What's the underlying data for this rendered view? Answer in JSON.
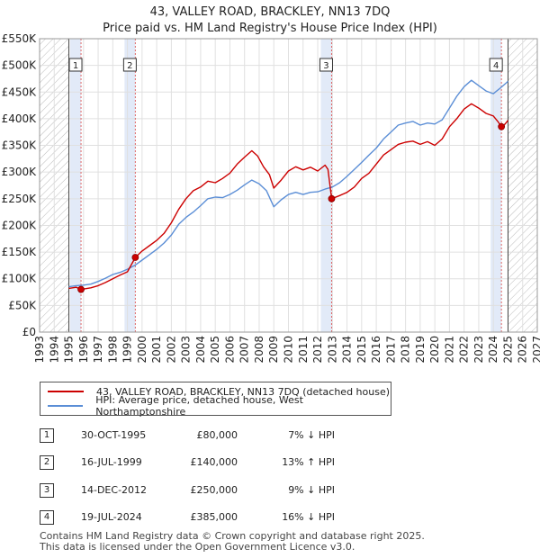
{
  "title": "43, VALLEY ROAD, BRACKLEY, NN13 7DQ",
  "subtitle": "Price paid vs. HM Land Registry's House Price Index (HPI)",
  "colors": {
    "property": "#cc0000",
    "hpi": "#5b8ed6",
    "band": "#dde6f7",
    "hatch": "#bbbbbb",
    "marker_line": "#dd6666"
  },
  "chart_data": {
    "type": "line",
    "x_range": [
      1993,
      2027
    ],
    "y_range": [
      0,
      550000
    ],
    "x_ticks": [
      "1993",
      "1994",
      "1995",
      "1996",
      "1997",
      "1998",
      "1999",
      "2000",
      "2001",
      "2002",
      "2003",
      "2004",
      "2005",
      "2006",
      "2007",
      "2008",
      "2009",
      "2010",
      "2011",
      "2012",
      "2013",
      "2014",
      "2015",
      "2016",
      "2017",
      "2018",
      "2019",
      "2020",
      "2021",
      "2022",
      "2023",
      "2024",
      "2025",
      "2026",
      "2027"
    ],
    "y_ticks": [
      {
        "value": 0,
        "label": "£0"
      },
      {
        "value": 50000,
        "label": "£50K"
      },
      {
        "value": 100000,
        "label": "£100K"
      },
      {
        "value": 150000,
        "label": "£150K"
      },
      {
        "value": 200000,
        "label": "£200K"
      },
      {
        "value": 250000,
        "label": "£250K"
      },
      {
        "value": 300000,
        "label": "£300K"
      },
      {
        "value": 350000,
        "label": "£350K"
      },
      {
        "value": 400000,
        "label": "£400K"
      },
      {
        "value": 450000,
        "label": "£450K"
      },
      {
        "value": 500000,
        "label": "£500K"
      },
      {
        "value": 550000,
        "label": "£550K"
      }
    ],
    "hatched_before": 1995.0,
    "hatched_after": 2025.0,
    "series": [
      {
        "name": "43, VALLEY ROAD, BRACKLEY, NN13 7DQ (detached house)",
        "color": "#cc0000",
        "points": [
          [
            1995.0,
            82000
          ],
          [
            1995.5,
            84000
          ],
          [
            1995.83,
            80000
          ],
          [
            1996.5,
            83000
          ],
          [
            1997.0,
            87000
          ],
          [
            1997.5,
            93000
          ],
          [
            1998.0,
            100000
          ],
          [
            1998.5,
            107000
          ],
          [
            1999.0,
            113000
          ],
          [
            1999.54,
            140000
          ],
          [
            2000.0,
            152000
          ],
          [
            2000.5,
            162000
          ],
          [
            2001.0,
            172000
          ],
          [
            2001.5,
            185000
          ],
          [
            2002.0,
            205000
          ],
          [
            2002.5,
            230000
          ],
          [
            2003.0,
            250000
          ],
          [
            2003.5,
            265000
          ],
          [
            2004.0,
            272000
          ],
          [
            2004.5,
            283000
          ],
          [
            2005.0,
            280000
          ],
          [
            2005.5,
            288000
          ],
          [
            2006.0,
            298000
          ],
          [
            2006.5,
            315000
          ],
          [
            2007.0,
            328000
          ],
          [
            2007.5,
            340000
          ],
          [
            2007.9,
            330000
          ],
          [
            2008.3,
            310000
          ],
          [
            2008.7,
            295000
          ],
          [
            2009.0,
            270000
          ],
          [
            2009.5,
            285000
          ],
          [
            2010.0,
            302000
          ],
          [
            2010.5,
            310000
          ],
          [
            2011.0,
            304000
          ],
          [
            2011.5,
            309000
          ],
          [
            2012.0,
            302000
          ],
          [
            2012.5,
            313000
          ],
          [
            2012.7,
            305000
          ],
          [
            2012.95,
            250000
          ],
          [
            2013.5,
            256000
          ],
          [
            2014.0,
            262000
          ],
          [
            2014.5,
            272000
          ],
          [
            2015.0,
            288000
          ],
          [
            2015.5,
            298000
          ],
          [
            2016.0,
            315000
          ],
          [
            2016.5,
            332000
          ],
          [
            2017.0,
            342000
          ],
          [
            2017.5,
            352000
          ],
          [
            2018.0,
            356000
          ],
          [
            2018.5,
            358000
          ],
          [
            2019.0,
            352000
          ],
          [
            2019.5,
            357000
          ],
          [
            2020.0,
            350000
          ],
          [
            2020.5,
            362000
          ],
          [
            2021.0,
            385000
          ],
          [
            2021.5,
            400000
          ],
          [
            2022.0,
            418000
          ],
          [
            2022.5,
            428000
          ],
          [
            2023.0,
            420000
          ],
          [
            2023.5,
            410000
          ],
          [
            2024.0,
            405000
          ],
          [
            2024.3,
            395000
          ],
          [
            2024.55,
            385000
          ],
          [
            2024.8,
            390000
          ],
          [
            2025.0,
            397000
          ]
        ]
      },
      {
        "name": "HPI: Average price, detached house, West Northamptonshire",
        "color": "#5b8ed6",
        "points": [
          [
            1995.0,
            85000
          ],
          [
            1995.5,
            87000
          ],
          [
            1996.0,
            88000
          ],
          [
            1996.5,
            90000
          ],
          [
            1997.0,
            95000
          ],
          [
            1997.5,
            101000
          ],
          [
            1998.0,
            108000
          ],
          [
            1998.5,
            112000
          ],
          [
            1999.0,
            118000
          ],
          [
            1999.5,
            125000
          ],
          [
            2000.0,
            135000
          ],
          [
            2000.5,
            145000
          ],
          [
            2001.0,
            155000
          ],
          [
            2001.5,
            167000
          ],
          [
            2002.0,
            182000
          ],
          [
            2002.5,
            202000
          ],
          [
            2003.0,
            215000
          ],
          [
            2003.5,
            225000
          ],
          [
            2004.0,
            237000
          ],
          [
            2004.5,
            250000
          ],
          [
            2005.0,
            253000
          ],
          [
            2005.5,
            252000
          ],
          [
            2006.0,
            258000
          ],
          [
            2006.5,
            266000
          ],
          [
            2007.0,
            276000
          ],
          [
            2007.5,
            285000
          ],
          [
            2008.0,
            278000
          ],
          [
            2008.5,
            265000
          ],
          [
            2009.0,
            235000
          ],
          [
            2009.5,
            248000
          ],
          [
            2010.0,
            258000
          ],
          [
            2010.5,
            262000
          ],
          [
            2011.0,
            258000
          ],
          [
            2011.5,
            262000
          ],
          [
            2012.0,
            263000
          ],
          [
            2012.5,
            268000
          ],
          [
            2013.0,
            272000
          ],
          [
            2013.5,
            280000
          ],
          [
            2014.0,
            292000
          ],
          [
            2014.5,
            305000
          ],
          [
            2015.0,
            318000
          ],
          [
            2015.5,
            332000
          ],
          [
            2016.0,
            345000
          ],
          [
            2016.5,
            362000
          ],
          [
            2017.0,
            375000
          ],
          [
            2017.5,
            388000
          ],
          [
            2018.0,
            392000
          ],
          [
            2018.5,
            395000
          ],
          [
            2019.0,
            388000
          ],
          [
            2019.5,
            392000
          ],
          [
            2020.0,
            390000
          ],
          [
            2020.5,
            398000
          ],
          [
            2021.0,
            420000
          ],
          [
            2021.5,
            442000
          ],
          [
            2022.0,
            460000
          ],
          [
            2022.5,
            472000
          ],
          [
            2023.0,
            462000
          ],
          [
            2023.5,
            452000
          ],
          [
            2024.0,
            447000
          ],
          [
            2024.5,
            458000
          ],
          [
            2025.0,
            470000
          ]
        ]
      }
    ],
    "annotations": [
      {
        "label": "1",
        "x": 1995.83,
        "value": 80000
      },
      {
        "label": "2",
        "x": 1999.54,
        "value": 140000
      },
      {
        "label": "3",
        "x": 2012.95,
        "value": 250000
      },
      {
        "label": "4",
        "x": 2024.55,
        "value": 385000
      }
    ]
  },
  "legend": {
    "property_label": "43, VALLEY ROAD, BRACKLEY, NN13 7DQ (detached house)",
    "hpi_label": "HPI: Average price, detached house, West Northamptonshire"
  },
  "transactions": [
    {
      "num": "1",
      "date": "30-OCT-1995",
      "price": "£80,000",
      "hpi": "7% ↓ HPI"
    },
    {
      "num": "2",
      "date": "16-JUL-1999",
      "price": "£140,000",
      "hpi": "13% ↑ HPI"
    },
    {
      "num": "3",
      "date": "14-DEC-2012",
      "price": "£250,000",
      "hpi": "9% ↓ HPI"
    },
    {
      "num": "4",
      "date": "19-JUL-2024",
      "price": "£385,000",
      "hpi": "16% ↓ HPI"
    }
  ],
  "footer": {
    "line1": "Contains HM Land Registry data © Crown copyright and database right 2025.",
    "line2": "This data is licensed under the Open Government Licence v3.0."
  }
}
